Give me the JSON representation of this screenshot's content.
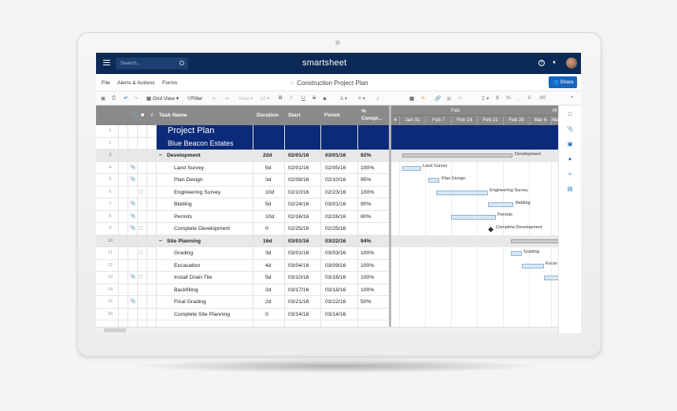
{
  "app": {
    "brand": "smartsheet",
    "search_placeholder": "Search...",
    "share_label": "Share",
    "doc_title": "Construction Project Plan"
  },
  "menu": [
    "File",
    "Alerts & Actions",
    "Forms"
  ],
  "toolbar": {
    "grid_view": "Grid View",
    "filter": "Filter",
    "font": "Arial",
    "size": "10"
  },
  "columns": {
    "task": "Task Name",
    "duration": "Duration",
    "start": "Start",
    "finish": "Finish",
    "pct": "% Compl..."
  },
  "gantt_header": {
    "month": "Feb",
    "month2": "M",
    "dates": [
      "4",
      "Jan 31",
      "Feb 7",
      "Feb 14",
      "Feb 21",
      "Feb 28",
      "Mar 6",
      "Mar"
    ]
  },
  "rows": [
    {
      "n": "1",
      "task": "Project Plan",
      "type": "banner-big"
    },
    {
      "n": "2",
      "task": "Blue Beacon Estates",
      "type": "banner"
    },
    {
      "n": "3",
      "task": "Development",
      "dur": "22d",
      "start": "02/01/16",
      "finish": "03/01/16",
      "pct": "92%",
      "type": "group"
    },
    {
      "n": "4",
      "task": "Land Survey",
      "dur": "5d",
      "start": "02/01/16",
      "finish": "02/05/16",
      "pct": "100%",
      "attach": true
    },
    {
      "n": "5",
      "task": "Plan Design",
      "dur": "3d",
      "start": "02/08/16",
      "finish": "02/10/16",
      "pct": "95%",
      "attach": true
    },
    {
      "n": "6",
      "task": "Engineering Survey",
      "dur": "10d",
      "start": "02/10/16",
      "finish": "02/23/16",
      "pct": "100%",
      "comment": true
    },
    {
      "n": "7",
      "task": "Bidding",
      "dur": "5d",
      "start": "02/24/16",
      "finish": "03/01/16",
      "pct": "90%",
      "attach": true
    },
    {
      "n": "8",
      "task": "Permits",
      "dur": "10d",
      "start": "02/16/16",
      "finish": "02/26/16",
      "pct": "80%",
      "attach": true
    },
    {
      "n": "9",
      "task": "Complete Development",
      "dur": "0",
      "start": "02/25/16",
      "finish": "02/25/16",
      "pct": "",
      "attach": true,
      "comment": true
    },
    {
      "n": "10",
      "task": "Site Planning",
      "dur": "16d",
      "start": "03/01/16",
      "finish": "03/22/16",
      "pct": "94%",
      "type": "group"
    },
    {
      "n": "11",
      "task": "Grading",
      "dur": "3d",
      "start": "03/01/16",
      "finish": "03/03/16",
      "pct": "100%",
      "comment": true
    },
    {
      "n": "12",
      "task": "Excavation",
      "dur": "4d",
      "start": "03/04/16",
      "finish": "03/09/16",
      "pct": "100%"
    },
    {
      "n": "13",
      "task": "Install Drain Tile",
      "dur": "5d",
      "start": "03/10/16",
      "finish": "03/16/16",
      "pct": "100%",
      "attach": true,
      "comment": true
    },
    {
      "n": "14",
      "task": "Backfilling",
      "dur": "2d",
      "start": "03/17/16",
      "finish": "03/18/16",
      "pct": "100%"
    },
    {
      "n": "15",
      "task": "Final Grading",
      "dur": "2d",
      "start": "03/21/16",
      "finish": "03/22/16",
      "pct": "50%",
      "attach": true
    },
    {
      "n": "16",
      "task": "Complete Site Planning",
      "dur": "0",
      "start": "03/14/16",
      "finish": "03/14/16",
      "pct": ""
    }
  ],
  "gantt_labels": {
    "development": "Development",
    "land_survey": "Land Survey",
    "plan_design": "Plan Design",
    "eng_survey": "Engineering Survey",
    "bidding": "Bidding",
    "permits": "Permits",
    "complete_dev": "Complete Development",
    "grading": "Grading",
    "excavation": "Excav"
  }
}
